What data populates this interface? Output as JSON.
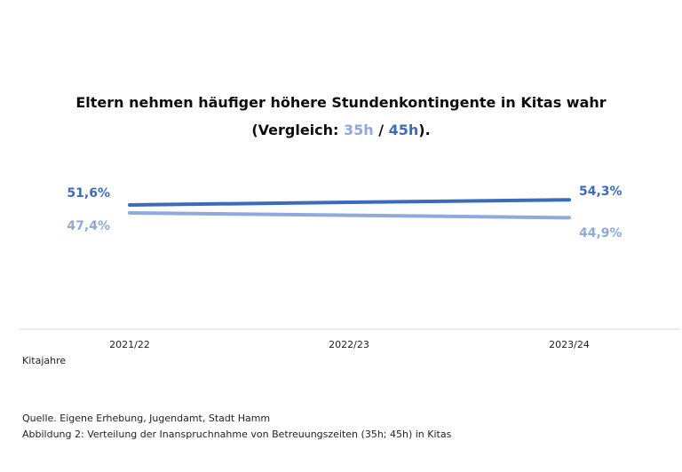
{
  "chart_data": {
    "type": "line",
    "title_line1": "Eltern nehmen häufiger höhere Stundenkontingente in Kitas wahr",
    "title_prefix": "(Vergleich: ",
    "title_35": "35h",
    "title_sep": " / ",
    "title_45": "45h",
    "title_suffix": ").",
    "categories": [
      "2021/22",
      "2022/23",
      "2023/24"
    ],
    "xlabel": "Kitajahre",
    "ylabel": "",
    "ylim": [
      20,
      70
    ],
    "grid": false,
    "series": [
      {
        "name": "45h",
        "values": [
          51.6,
          53.0,
          54.3
        ],
        "labels": [
          "51,6%",
          "",
          "54,3%"
        ],
        "color": "#3c6bbd"
      },
      {
        "name": "35h",
        "values": [
          47.4,
          46.2,
          44.9
        ],
        "labels": [
          "47,4%",
          "",
          "44,9%"
        ],
        "color": "#8fa9dc"
      }
    ]
  },
  "footer": {
    "source": "Quelle. Eigene Erhebung, Jugendamt, Stadt Hamm",
    "figure_caption": "Abbildung 2: Verteilung der Inanspruchnahme von Betreuungszeiten (35h; 45h) in Kitas"
  }
}
